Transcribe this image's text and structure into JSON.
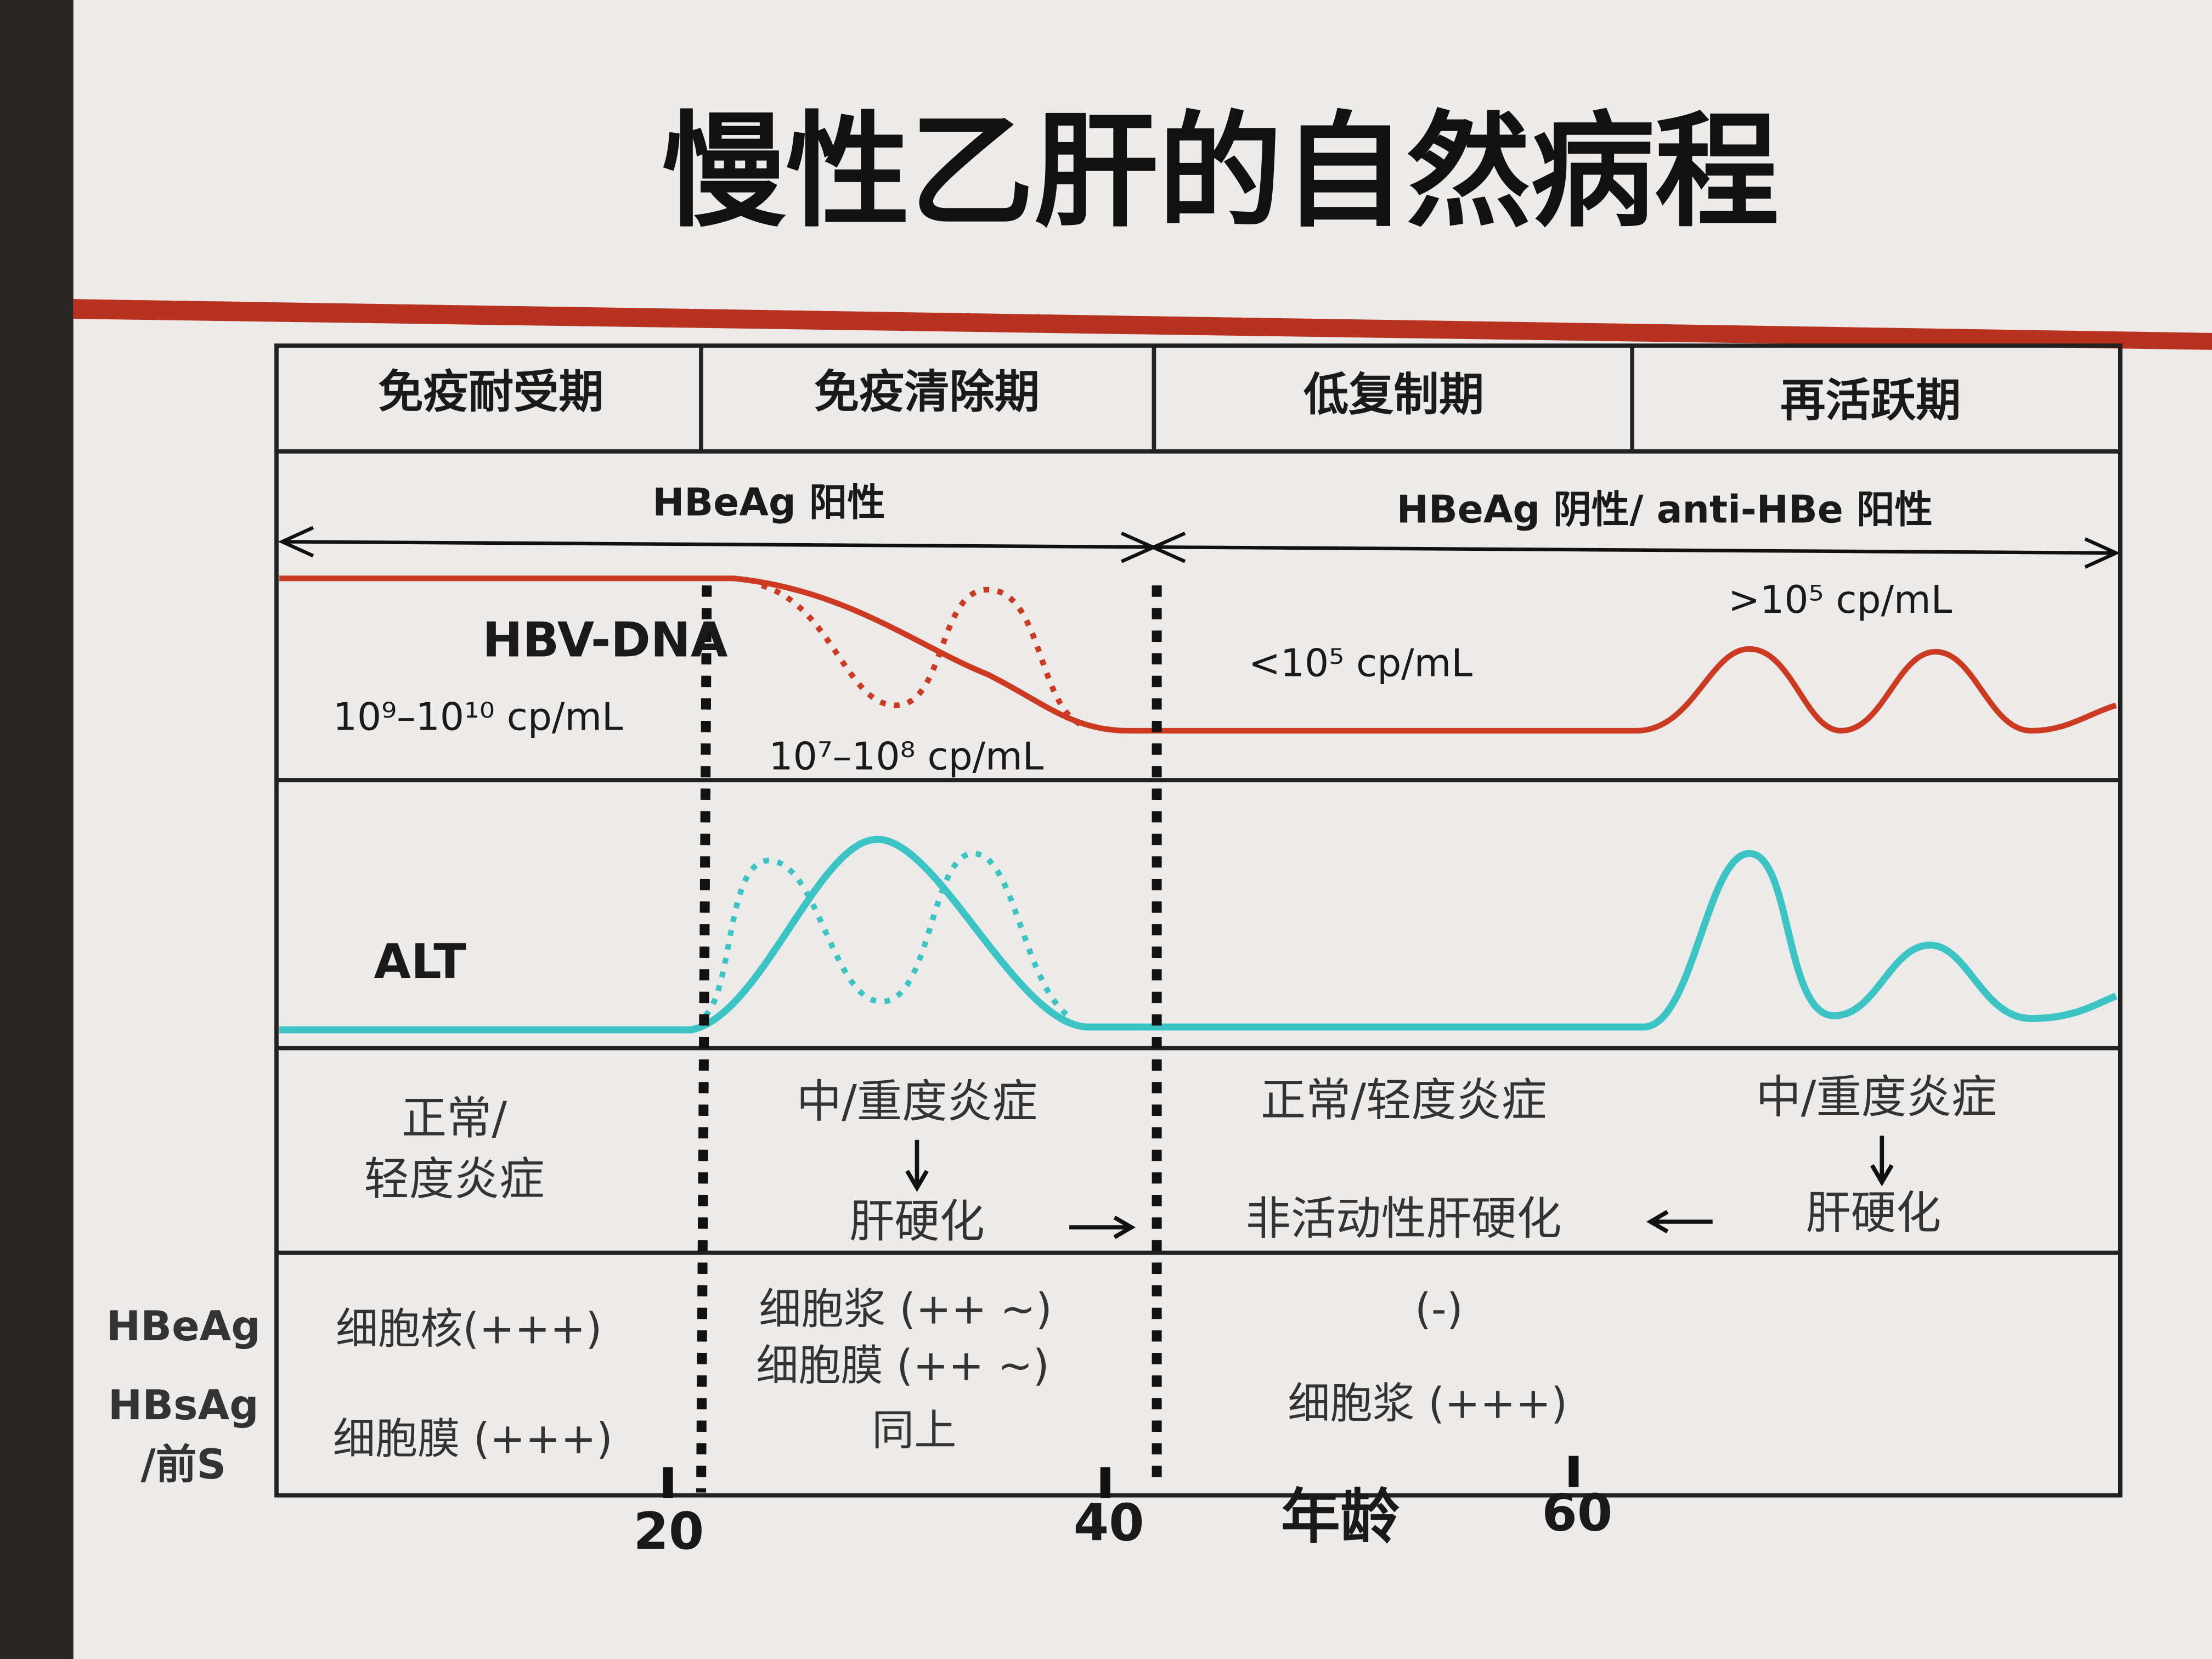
{
  "title": "慢性乙肝的自然病程",
  "phases": [
    "免疫耐受期",
    "免疫清除期",
    "低复制期",
    "再活跃期"
  ],
  "hbeag_status": {
    "positive": "HBeAg 阳性",
    "negative": "HBeAg 阴性/ anti-HBe 阳性"
  },
  "hbv_dna": {
    "label": "HBV-DNA",
    "levels": [
      "10⁹–10¹⁰ cp/mL",
      "10⁷–10⁸ cp/mL",
      "<10⁵ cp/mL",
      ">10⁵ cp/mL"
    ]
  },
  "alt": {
    "label": "ALT"
  },
  "histology": [
    {
      "lines": [
        "正常/",
        "轻度炎症"
      ]
    },
    {
      "lines": [
        "中/重度炎症",
        "肝硬化"
      ]
    },
    {
      "lines": [
        "正常/轻度炎症",
        "非活动性肝硬化"
      ]
    },
    {
      "lines": [
        "中/重度炎症",
        "肝硬化"
      ]
    }
  ],
  "staining": {
    "labels": [
      "HBeAg",
      "HBsAg",
      "/前S"
    ],
    "cells": [
      [
        "细胞核(+++)",
        "细胞膜 (+++)"
      ],
      [
        "细胞浆 (++ ~)",
        "细胞膜 (++ ~)",
        "同上"
      ],
      [
        "(-)",
        "细胞浆 (+++)"
      ]
    ]
  },
  "age_axis": {
    "label": "年龄",
    "ticks": [
      "20",
      "40",
      "60"
    ]
  }
}
